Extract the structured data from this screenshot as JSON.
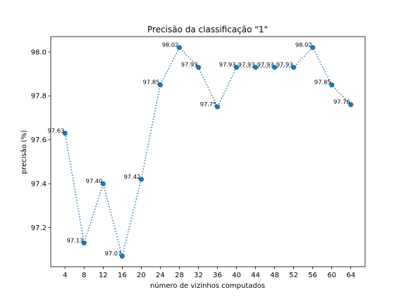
{
  "chart_data": {
    "type": "line",
    "title": "Precisão da classificação \"1\"",
    "xlabel": "número de vizinhos computados",
    "ylabel": "precisão (%)",
    "x": [
      4,
      8,
      12,
      16,
      20,
      24,
      28,
      32,
      36,
      40,
      44,
      48,
      52,
      56,
      60,
      64
    ],
    "x_ticks": [
      "4",
      "8",
      "12",
      "16",
      "20",
      "24",
      "28",
      "32",
      "36",
      "40",
      "44",
      "48",
      "52",
      "56",
      "60",
      "64"
    ],
    "y_ticks": [
      "97.2",
      "97.4",
      "97.6",
      "97.8",
      "98.0"
    ],
    "y_tick_values": [
      97.2,
      97.4,
      97.6,
      97.8,
      98.0
    ],
    "xlim": [
      1,
      67
    ],
    "ylim": [
      97.022,
      98.07
    ],
    "series": [
      {
        "values": [
          97.63,
          97.13,
          97.4,
          97.07,
          97.42,
          97.85,
          98.02,
          97.93,
          97.75,
          97.93,
          97.93,
          97.93,
          97.93,
          98.02,
          97.85,
          97.76
        ],
        "labels": [
          "97.63",
          "97.13",
          "97.40",
          "97.07",
          "97.42",
          "97.85",
          "98.02",
          "97.93",
          "97.75",
          "97.93",
          "97.93",
          "97.93",
          "97.93",
          "98.02",
          "97.85",
          "97.76"
        ],
        "color": "#1f77b4",
        "line_style": "dotted",
        "marker": "circle"
      }
    ],
    "grid": false,
    "legend": "none"
  }
}
